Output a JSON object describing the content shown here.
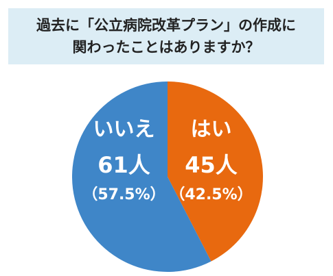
{
  "chart_data": {
    "type": "pie",
    "title": [
      "過去に「公立病院改革プラン」の作成に",
      "関わったことはありますか？"
    ],
    "categories": [
      "はい",
      "いいえ"
    ],
    "values": [
      45,
      61
    ],
    "value_labels": [
      "45人",
      "61人"
    ],
    "percent_labels": [
      "（42.5%）",
      "（57.5%）"
    ],
    "colors": [
      "#e8690f",
      "#3f86c8"
    ]
  }
}
